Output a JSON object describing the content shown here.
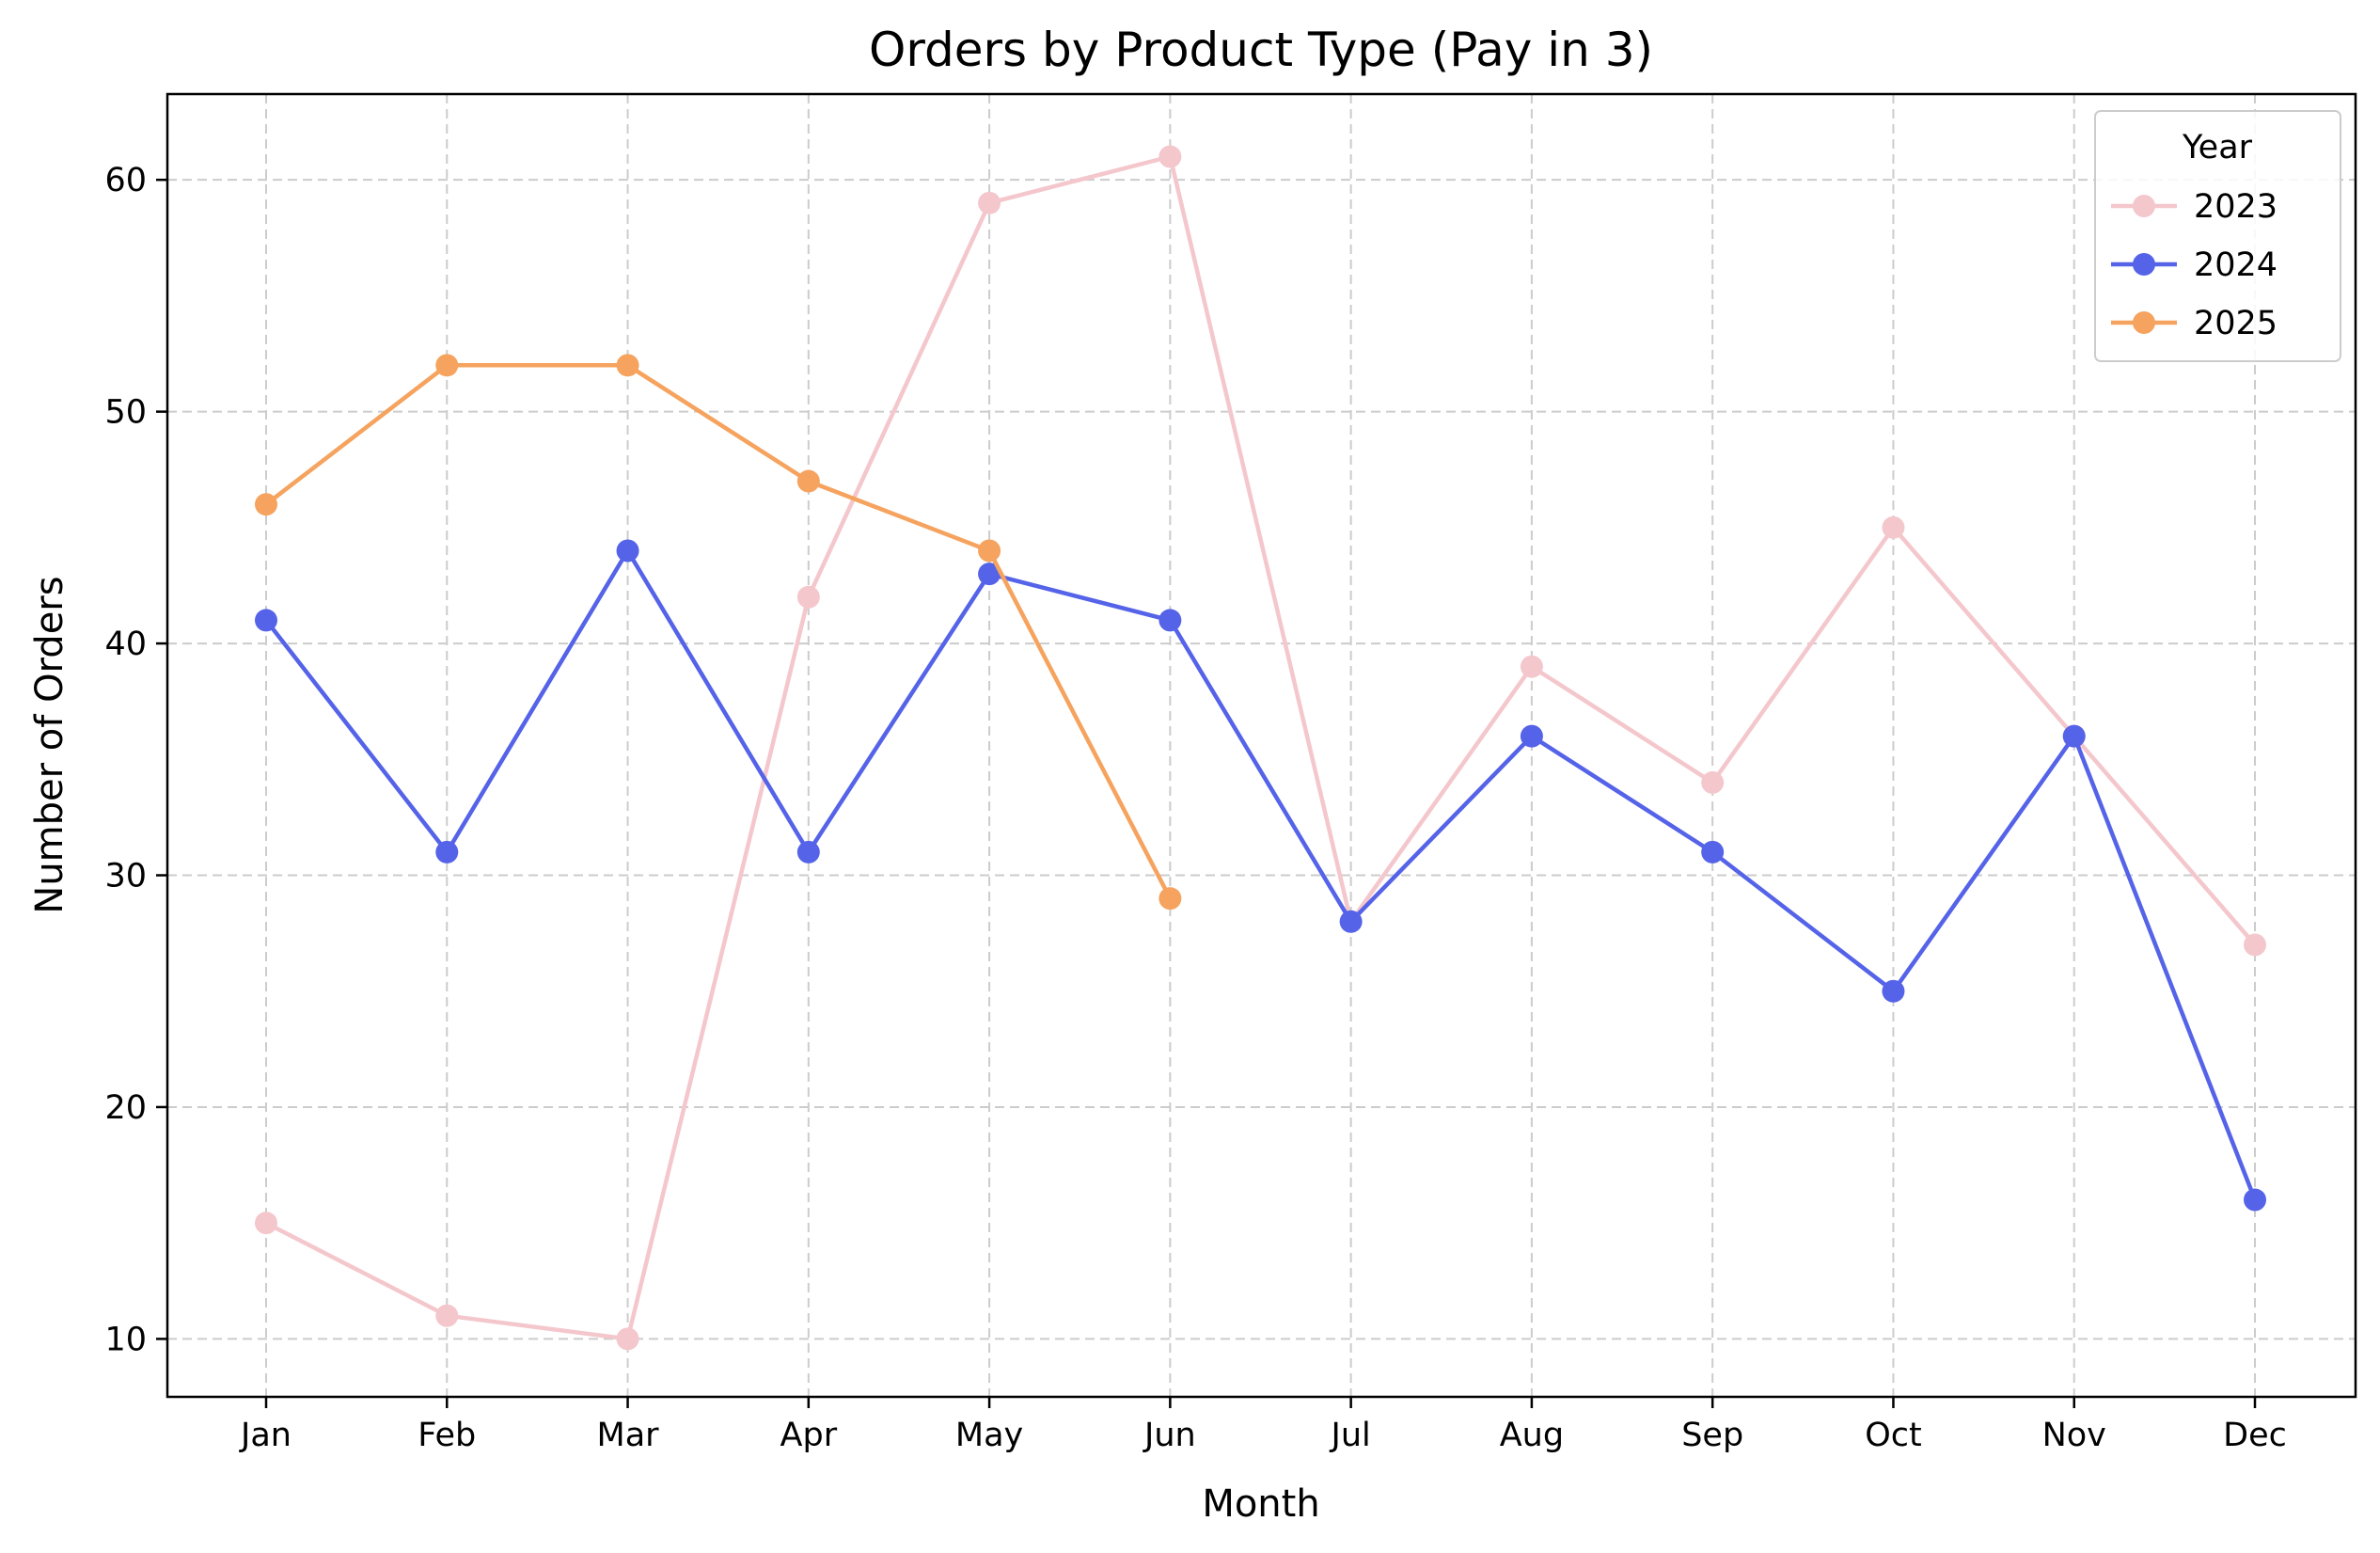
{
  "chart_data": {
    "type": "line",
    "title": "Orders by Product Type (Pay in 3)",
    "xlabel": "Month",
    "ylabel": "Number of Orders",
    "categories": [
      "Jan",
      "Feb",
      "Mar",
      "Apr",
      "May",
      "Jun",
      "Jul",
      "Aug",
      "Sep",
      "Oct",
      "Nov",
      "Dec"
    ],
    "ylim": [
      7.5,
      63.7
    ],
    "yticks": [
      10,
      20,
      30,
      40,
      50,
      60
    ],
    "grid": true,
    "legend": {
      "title": "Year",
      "placement": "top-right"
    },
    "series": [
      {
        "name": "2023",
        "color": "#f4c7cc",
        "values": [
          15,
          11,
          10,
          42,
          59,
          61,
          28,
          39,
          34,
          45,
          36,
          27
        ]
      },
      {
        "name": "2024",
        "color": "#5563e8",
        "values": [
          41,
          31,
          44,
          31,
          43,
          41,
          28,
          36,
          31,
          25,
          36,
          16
        ]
      },
      {
        "name": "2025",
        "color": "#f5a35e",
        "values": [
          46,
          52,
          52,
          47,
          44,
          29,
          null,
          null,
          null,
          null,
          null,
          null
        ]
      }
    ]
  }
}
